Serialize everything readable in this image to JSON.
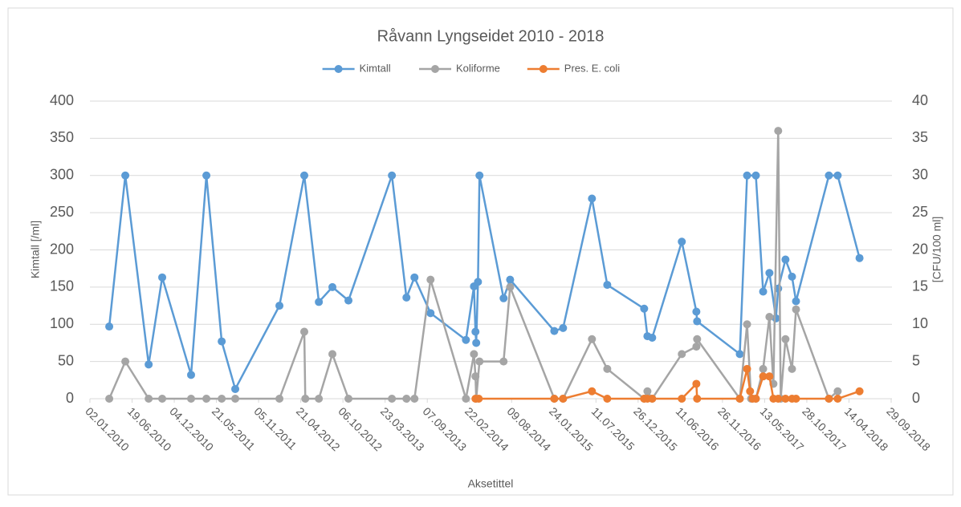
{
  "chart_data": {
    "type": "line",
    "title": "Råvann Lyngseidet 2010 - 2018",
    "y_label": "Kimtall [/ml]",
    "y2_label": "[CFU/100 ml]",
    "x_label": "Aksetittel",
    "legend": "top",
    "grid": true,
    "xlim": [
      "02.01.2010",
      "29.09.2018"
    ],
    "xticks": [
      "02.01.2010",
      "19.06.2010",
      "04.12.2010",
      "21.05.2011",
      "05.11.2011",
      "21.04.2012",
      "06.10.2012",
      "23.03.2013",
      "07.09.2013",
      "22.02.2014",
      "09.08.2014",
      "24.01.2015",
      "11.07.2015",
      "26.12.2015",
      "11.06.2016",
      "26.11.2016",
      "13.05.2017",
      "28.10.2017",
      "14.04.2018",
      "29.09.2018"
    ],
    "ylim": [
      0,
      400
    ],
    "yticks": [
      0,
      50,
      100,
      150,
      200,
      250,
      300,
      350,
      400
    ],
    "y2lim": [
      0,
      40
    ],
    "y2ticks": [
      0,
      5,
      10,
      15,
      20,
      25,
      30,
      35,
      40
    ],
    "series": [
      {
        "name": "Kimtall",
        "color": "#5b9bd5",
        "axis": "y",
        "x": [
          "20.03.2010",
          "23.05.2010",
          "24.08.2010",
          "17.10.2010",
          "09.02.2011",
          "11.04.2011",
          "11.06.2011",
          "04.08.2011",
          "27.01.2012",
          "05.05.2012",
          "02.07.2012",
          "25.08.2012",
          "28.10.2012",
          "19.04.2013",
          "16.06.2013",
          "18.07.2013",
          "20.09.2013",
          "08.02.2014",
          "12.03.2014",
          "18.03.2014",
          "21.03.2014",
          "28.03.2014",
          "03.04.2014",
          "08.07.2014",
          "03.08.2014",
          "26.01.2015",
          "02.03.2015",
          "25.06.2015",
          "25.08.2015",
          "19.01.2016",
          "01.02.2016",
          "20.02.2016",
          "17.06.2016",
          "14.08.2016",
          "17.08.2016",
          "03.02.2017",
          "04.03.2017",
          "08.04.2017",
          "07.05.2017",
          "01.06.2017",
          "27.06.2017",
          "06.07.2017",
          "04.08.2017",
          "30.08.2017",
          "15.09.2017",
          "24.01.2018",
          "28.02.2018",
          "26.05.2018"
        ],
        "values": [
          97,
          300,
          46,
          163,
          32,
          300,
          77,
          13,
          125,
          300,
          130,
          150,
          132,
          300,
          136,
          163,
          115,
          79,
          151,
          90,
          75,
          157,
          300,
          135,
          160,
          91,
          95,
          269,
          153,
          121,
          84,
          82,
          211,
          117,
          104,
          60,
          300,
          300,
          144,
          169,
          108,
          148,
          187,
          164,
          131,
          300,
          300,
          189
        ]
      },
      {
        "name": "Koliforme",
        "color": "#a5a5a5",
        "axis": "y2",
        "x": [
          "20.03.2010",
          "23.05.2010",
          "24.08.2010",
          "17.10.2010",
          "09.02.2011",
          "11.04.2011",
          "11.06.2011",
          "04.08.2011",
          "27.01.2012",
          "05.05.2012",
          "09.05.2012",
          "02.07.2012",
          "25.08.2012",
          "28.10.2012",
          "19.04.2013",
          "16.06.2013",
          "18.07.2013",
          "20.09.2013",
          "08.02.2014",
          "12.03.2014",
          "18.03.2014",
          "21.03.2014",
          "03.04.2014",
          "08.07.2014",
          "03.08.2014",
          "26.01.2015",
          "02.03.2015",
          "25.06.2015",
          "25.08.2015",
          "19.01.2016",
          "01.02.2016",
          "20.02.2016",
          "17.06.2016",
          "14.08.2016",
          "17.08.2016",
          "03.02.2017",
          "04.03.2017",
          "20.03.2017",
          "08.04.2017",
          "07.05.2017",
          "01.06.2017",
          "17.06.2017",
          "06.07.2017",
          "16.07.2017",
          "04.08.2017",
          "30.08.2017",
          "15.09.2017",
          "24.01.2018",
          "28.02.2018"
        ],
        "values": [
          0,
          5,
          0,
          0,
          0,
          0,
          0,
          0,
          0,
          9,
          0,
          0,
          6,
          0,
          0,
          0,
          0,
          16,
          0,
          6,
          3,
          0,
          5,
          5,
          15,
          0,
          0,
          8,
          4,
          0,
          1,
          0,
          6,
          7,
          8,
          0,
          10,
          0,
          0,
          4,
          11,
          2,
          36,
          0,
          8,
          4,
          12,
          0,
          1
        ]
      },
      {
        "name": "Pres. E. coli",
        "color": "#ed7d31",
        "axis": "y2",
        "x": [
          "18.03.2014",
          "31.03.2014",
          "26.01.2015",
          "02.03.2015",
          "25.06.2015",
          "25.08.2015",
          "19.01.2016",
          "01.02.2016",
          "20.02.2016",
          "17.06.2016",
          "14.08.2016",
          "17.08.2016",
          "03.02.2017",
          "04.03.2017",
          "16.03.2017",
          "26.03.2017",
          "08.04.2017",
          "07.05.2017",
          "01.06.2017",
          "17.06.2017",
          "06.07.2017",
          "04.08.2017",
          "30.08.2017",
          "15.09.2017",
          "24.01.2018",
          "28.02.2018",
          "26.05.2018"
        ],
        "values": [
          0,
          0,
          0,
          0,
          1,
          0,
          0,
          0,
          0,
          0,
          2,
          0,
          0,
          4,
          1,
          0,
          0,
          3,
          3,
          0,
          0,
          0,
          0,
          0,
          0,
          0,
          1
        ]
      }
    ]
  }
}
